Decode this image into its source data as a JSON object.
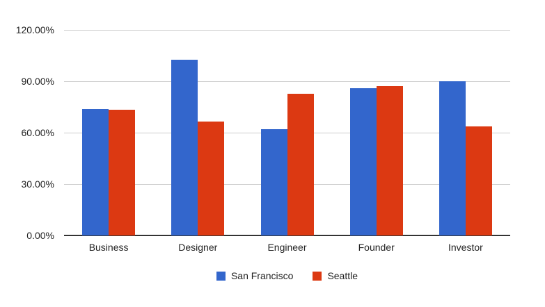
{
  "chart_data": {
    "type": "bar",
    "title": "",
    "xlabel": "",
    "ylabel": "",
    "categories": [
      "Business",
      "Designer",
      "Engineer",
      "Founder",
      "Investor"
    ],
    "series": [
      {
        "name": "San Francisco",
        "color": "#3366CC",
        "values": [
          73.8,
          102.5,
          62.0,
          86.0,
          90.0
        ]
      },
      {
        "name": "Seattle",
        "color": "#DC3912",
        "values": [
          73.2,
          66.5,
          82.7,
          87.0,
          63.6
        ]
      }
    ],
    "ylim": [
      0,
      120
    ],
    "yticks": [
      {
        "value": 0,
        "label": "0.00%"
      },
      {
        "value": 30,
        "label": "30.00%"
      },
      {
        "value": 60,
        "label": "60.00%"
      },
      {
        "value": 90,
        "label": "90.00%"
      },
      {
        "value": 120,
        "label": "120.00%"
      }
    ],
    "grid": true,
    "legend_position": "bottom"
  },
  "colors": {
    "background": "#ffffff",
    "gridline": "#cccccc",
    "axis": "#333333",
    "text": "#222222"
  }
}
